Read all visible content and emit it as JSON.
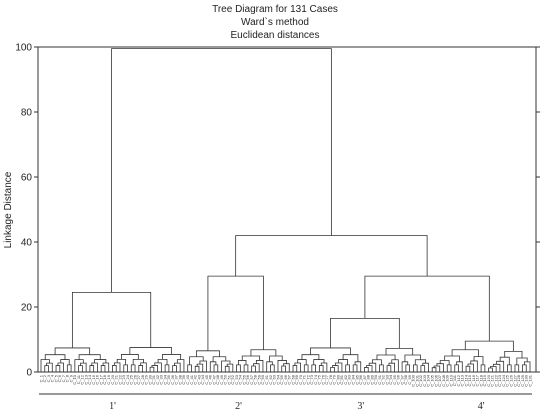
{
  "chart_data": {
    "type": "dendrogram",
    "title_lines": [
      "Tree Diagram for 131 Cases",
      "Ward`s method",
      "Euclidean distances"
    ],
    "ylabel": "Linkage Distance",
    "ylim": [
      0,
      100
    ],
    "yticks": [
      0,
      20,
      40,
      60,
      80,
      100
    ],
    "leaf_count": 131,
    "grid": false,
    "leaf_labels": [
      "C_1",
      "C_2",
      "C_3",
      "C_4",
      "C_5",
      "C_6",
      "C_7",
      "C_8",
      "C_9",
      "C_10",
      "C_11",
      "C_12",
      "C_13",
      "C_14",
      "C_15",
      "C_16",
      "C_17",
      "C_18",
      "C_19",
      "C_20",
      "C_21",
      "C_22",
      "C_23",
      "C_24",
      "C_25",
      "C_26",
      "C_27",
      "C_28",
      "C_29",
      "C_30",
      "C_31",
      "C_32",
      "C_33",
      "C_34",
      "C_35",
      "C_36",
      "C_37",
      "C_38",
      "C_39",
      "C_40",
      "C_41",
      "C_42",
      "C_43",
      "C_44",
      "C_45",
      "C_46",
      "C_47",
      "C_48",
      "C_49",
      "C_50",
      "C_51",
      "C_52",
      "C_53",
      "C_54",
      "C_55",
      "C_56",
      "C_57",
      "C_58",
      "C_59",
      "C_60",
      "C_61",
      "C_62",
      "C_63",
      "C_64",
      "C_65",
      "C_66",
      "C_67",
      "C_68",
      "C_69",
      "C_70",
      "C_71",
      "C_72",
      "C_73",
      "C_74",
      "C_75",
      "C_76",
      "C_77",
      "C_78",
      "C_79",
      "C_80",
      "C_81",
      "C_82",
      "C_83",
      "C_84",
      "C_85",
      "C_86",
      "C_87",
      "C_88",
      "C_89",
      "C_90",
      "C_91",
      "C_92",
      "C_93",
      "C_94",
      "C_95",
      "C_96",
      "C_97",
      "C_98",
      "C_99",
      "C_100",
      "C_101",
      "C_102",
      "C_103",
      "C_104",
      "C_105",
      "C_106",
      "C_107",
      "C_108",
      "C_109",
      "C_110",
      "C_111",
      "C_112",
      "C_113",
      "C_114",
      "C_115",
      "C_116",
      "C_117",
      "C_118",
      "C_119",
      "C_120",
      "C_121",
      "C_122",
      "C_123",
      "C_124",
      "C_125",
      "C_126",
      "C_127",
      "C_128",
      "C_129",
      "C_130",
      "C_131"
    ],
    "groups": [
      {
        "label": "1'",
        "first_leaf": 0,
        "last_leaf": 38,
        "top_height": 24.5
      },
      {
        "label": "2'",
        "first_leaf": 39,
        "last_leaf": 66,
        "top_height": 29.5
      },
      {
        "label": "3'",
        "first_leaf": 67,
        "last_leaf": 103,
        "top_height": 16.5
      },
      {
        "label": "4'",
        "first_leaf": 104,
        "last_leaf": 130,
        "top_height": 9.5
      }
    ],
    "main_merges": [
      {
        "height": 29.5,
        "joins": [
          "3'",
          "4'"
        ]
      },
      {
        "height": 42.0,
        "joins": [
          "2'",
          "3'+4'"
        ]
      },
      {
        "height": 99.5,
        "joins": [
          "1'",
          "2'+3'+4'"
        ]
      }
    ]
  }
}
